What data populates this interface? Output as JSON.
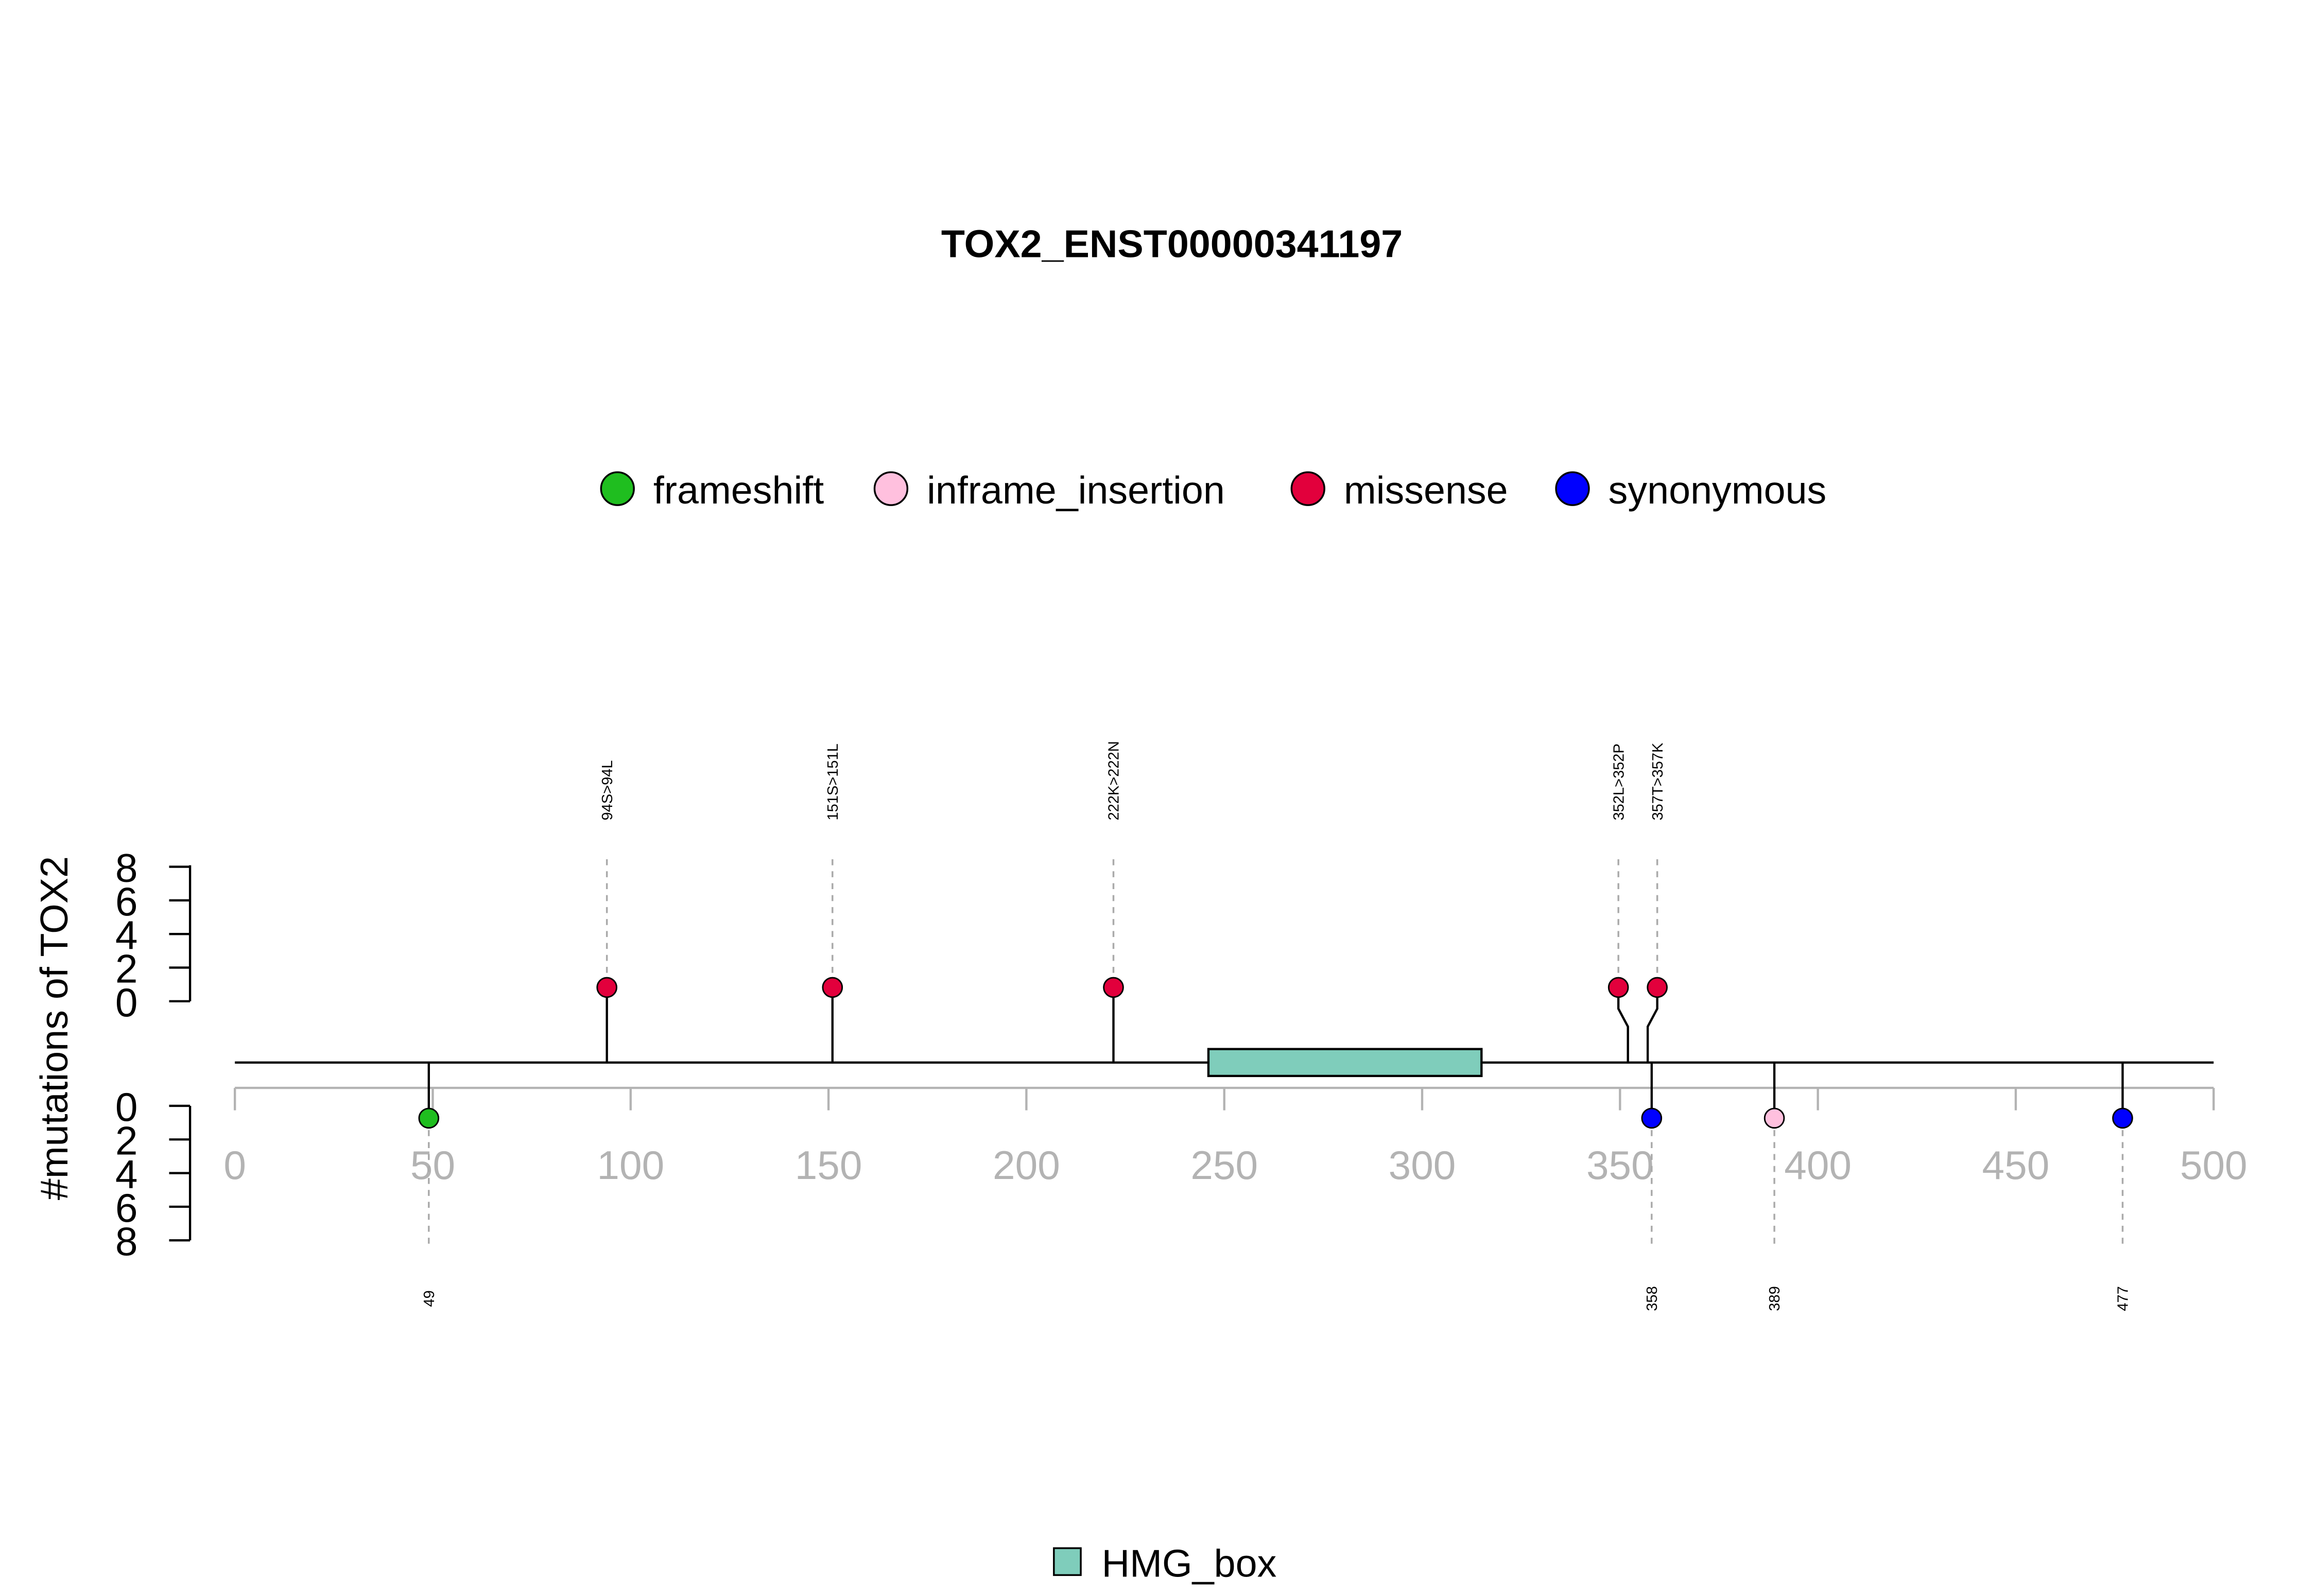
{
  "chart_data": {
    "type": "lollipop",
    "title": "TOX2_ENST00000341197",
    "ylabel": "#mutations of TOX2",
    "xlim": [
      0,
      500
    ],
    "x_ticks": [
      "0",
      "50",
      "100",
      "150",
      "200",
      "250",
      "300",
      "350",
      "400",
      "450",
      "500"
    ],
    "y_ticks": [
      "0",
      "2",
      "4",
      "6",
      "8"
    ],
    "ylim": [
      0,
      8
    ],
    "legend_mutations": [
      {
        "label": "frameshift",
        "color": "#1fbe1f"
      },
      {
        "label": "inframe_insertion",
        "color": "#ffc0de"
      },
      {
        "label": "missense",
        "color": "#e2003c"
      },
      {
        "label": "synonymous",
        "color": "#0000ff"
      }
    ],
    "legend_domains": [
      {
        "label": "HMG_box",
        "color": "#7fcdbb"
      }
    ],
    "domains": [
      {
        "name": "HMG_box",
        "start": 246,
        "end": 315,
        "color": "#7fcdbb"
      }
    ],
    "mutations_top": [
      {
        "position": 94,
        "label": "94S>94L",
        "type": "missense",
        "count": 1
      },
      {
        "position": 151,
        "label": "151S>151L",
        "type": "missense",
        "count": 1
      },
      {
        "position": 222,
        "label": "222K>222N",
        "type": "missense",
        "count": 1
      },
      {
        "position": 352,
        "label": "352L>352P",
        "type": "missense",
        "count": 1
      },
      {
        "position": 357,
        "label": "357T>357K",
        "type": "missense",
        "count": 1
      }
    ],
    "mutations_bottom": [
      {
        "position": 49,
        "label": "49",
        "type": "frameshift",
        "count": 1
      },
      {
        "position": 358,
        "label": "358",
        "type": "synonymous",
        "count": 1
      },
      {
        "position": 389,
        "label": "389",
        "type": "inframe_insertion",
        "count": 1
      },
      {
        "position": 477,
        "label": "477",
        "type": "synonymous",
        "count": 1
      }
    ]
  }
}
